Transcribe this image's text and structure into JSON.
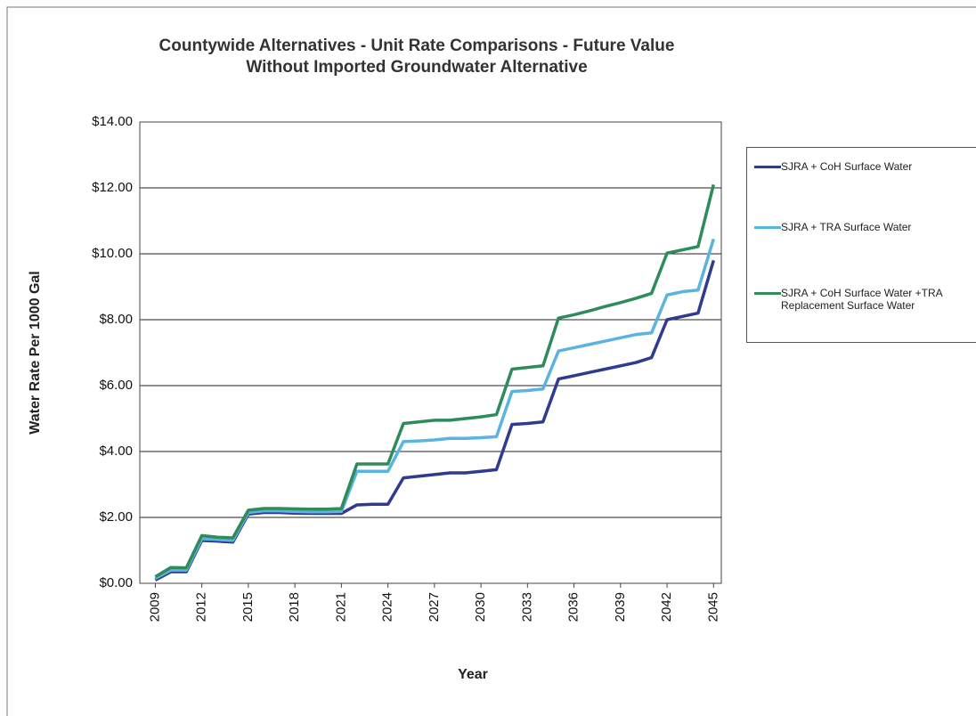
{
  "chart_data": {
    "type": "line",
    "title": "Countywide Alternatives - Unit Rate Comparisons - Future Value",
    "subtitle": "Without Imported Groundwater Alternative",
    "xlabel": "Year",
    "ylabel": "Water Rate Per 1000 Gal",
    "x": [
      2009,
      2010,
      2011,
      2012,
      2013,
      2014,
      2015,
      2016,
      2017,
      2018,
      2019,
      2020,
      2021,
      2022,
      2023,
      2024,
      2025,
      2026,
      2027,
      2028,
      2029,
      2030,
      2031,
      2032,
      2033,
      2034,
      2035,
      2036,
      2037,
      2038,
      2039,
      2040,
      2041,
      2042,
      2043,
      2044,
      2045
    ],
    "series": [
      {
        "name": "SJRA + CoH Surface Water",
        "color": "#2e3b8f",
        "values": [
          0.1,
          0.35,
          0.35,
          1.3,
          1.28,
          1.25,
          2.1,
          2.15,
          2.15,
          2.13,
          2.12,
          2.12,
          2.12,
          2.38,
          2.4,
          2.4,
          3.2,
          3.25,
          3.3,
          3.35,
          3.35,
          3.4,
          3.45,
          4.82,
          4.85,
          4.9,
          6.2,
          6.3,
          6.4,
          6.5,
          6.6,
          6.7,
          6.85,
          8.0,
          8.1,
          8.2,
          9.8
        ]
      },
      {
        "name": "SJRA + TRA Surface Water",
        "color": "#5bb3e0",
        "values": [
          0.15,
          0.4,
          0.4,
          1.35,
          1.33,
          1.3,
          2.15,
          2.2,
          2.2,
          2.18,
          2.17,
          2.17,
          2.18,
          3.4,
          3.4,
          3.4,
          4.3,
          4.32,
          4.35,
          4.4,
          4.4,
          4.42,
          4.45,
          5.82,
          5.85,
          5.9,
          7.05,
          7.15,
          7.25,
          7.35,
          7.45,
          7.55,
          7.6,
          8.75,
          8.85,
          8.9,
          10.45
        ]
      },
      {
        "name": "SJRA + CoH Surface Water +TRA Replacement Surface Water",
        "color": "#2e8b5a",
        "values": [
          0.2,
          0.48,
          0.47,
          1.45,
          1.4,
          1.38,
          2.22,
          2.27,
          2.27,
          2.26,
          2.25,
          2.25,
          2.27,
          3.62,
          3.62,
          3.62,
          4.85,
          4.9,
          4.95,
          4.95,
          5.0,
          5.05,
          5.12,
          6.5,
          6.55,
          6.6,
          8.05,
          8.15,
          8.27,
          8.4,
          8.52,
          8.65,
          8.8,
          10.02,
          10.12,
          10.22,
          12.1
        ]
      }
    ],
    "xlim": [
      2008,
      2045.5
    ],
    "xticks": [
      2009,
      2012,
      2015,
      2018,
      2021,
      2024,
      2027,
      2030,
      2033,
      2036,
      2039,
      2042,
      2045
    ],
    "ylim": [
      0,
      14
    ],
    "yticks": [
      {
        "value": 0,
        "label": "$0.00"
      },
      {
        "value": 2,
        "label": "$2.00"
      },
      {
        "value": 4,
        "label": "$4.00"
      },
      {
        "value": 6,
        "label": "$6.00"
      },
      {
        "value": 8,
        "label": "$8.00"
      },
      {
        "value": 10,
        "label": "$10.00"
      },
      {
        "value": 12,
        "label": "$12.00"
      },
      {
        "value": 14,
        "label": "$14.00"
      }
    ],
    "grid": true,
    "legend": "right"
  }
}
